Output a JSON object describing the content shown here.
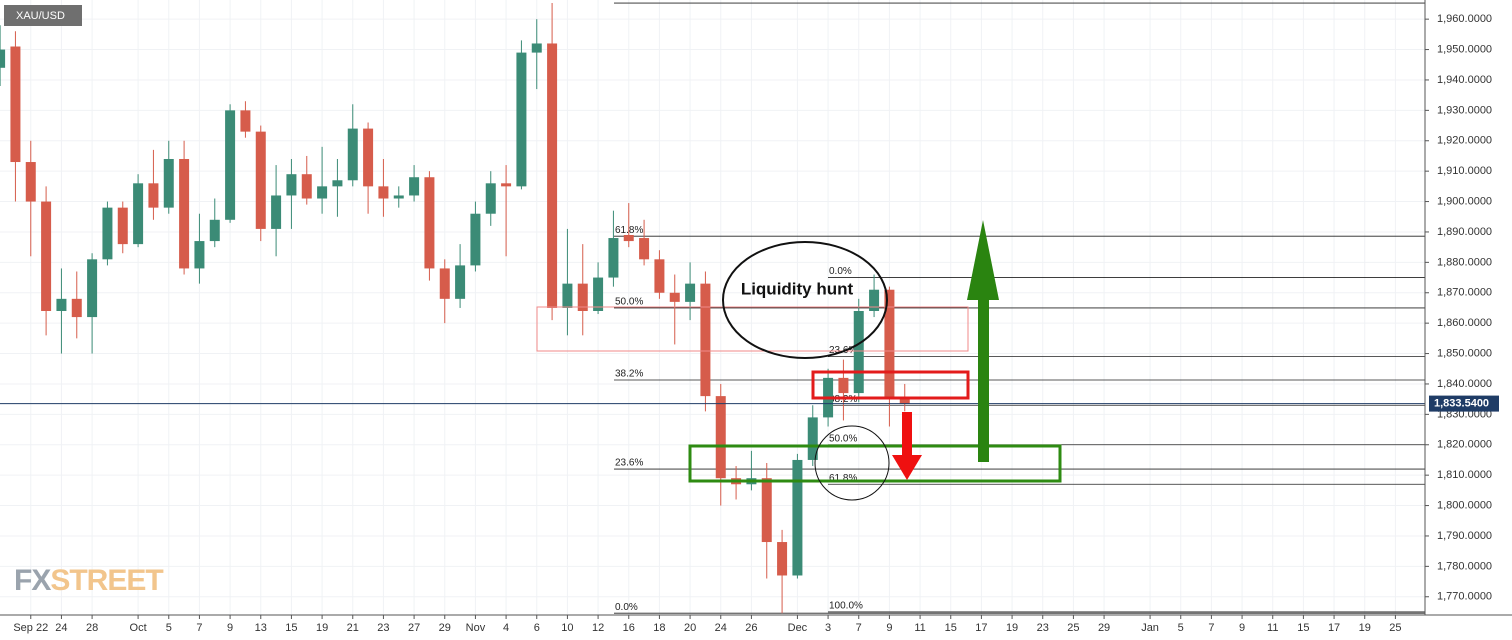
{
  "chart_data": {
    "type": "candlestick",
    "title": "XAU/USD",
    "watermark": [
      "FX",
      "STREET"
    ],
    "categories": [
      null,
      null,
      "Sep 22",
      null,
      "24",
      null,
      "28",
      null,
      null,
      "Oct",
      null,
      "5",
      null,
      "7",
      null,
      "9",
      null,
      "13",
      null,
      "15",
      null,
      "19",
      null,
      "21",
      null,
      "23",
      null,
      "27",
      null,
      "29",
      null,
      "Nov",
      null,
      "4",
      null,
      "6",
      null,
      "10",
      null,
      "12",
      null,
      "16",
      null,
      "18",
      null,
      "20",
      null,
      "24",
      null,
      "26",
      null,
      null,
      "Dec",
      null,
      "3",
      null,
      "7",
      null,
      "9",
      null,
      "11",
      null,
      "15",
      null,
      "17",
      null,
      "19",
      null,
      "23",
      null,
      "25",
      null,
      "29",
      null,
      null,
      "Jan",
      null,
      "5",
      null,
      "7",
      null,
      "9",
      null,
      "11",
      null,
      "15",
      null,
      "17",
      null,
      "19",
      null,
      "25",
      null
    ],
    "open": [
      1944,
      1951,
      1913,
      1900,
      1864,
      1868,
      1862,
      1881,
      1898,
      1886,
      1906,
      1898,
      1914,
      1878,
      1887,
      1894,
      1930,
      1923,
      1891,
      1902,
      1909,
      1901,
      1905,
      1907,
      1924,
      1905,
      1901,
      1902,
      1908,
      1878,
      1868,
      1879,
      1896,
      1906,
      1905,
      1949,
      1952,
      1865,
      1873,
      1864,
      1875,
      1889,
      1888,
      1881,
      1870,
      1867,
      1873,
      1836,
      1809,
      1807,
      1809,
      1788,
      1777,
      1815,
      1829,
      1842,
      1837,
      1864,
      1871,
      1835,
      null,
      null,
      null,
      null,
      null,
      null,
      null,
      null,
      null,
      null,
      null,
      null,
      null,
      null,
      null,
      null,
      null,
      null,
      null,
      null,
      null,
      null,
      null,
      null,
      null,
      null,
      null,
      null,
      null,
      null,
      null,
      null,
      null
    ],
    "high": [
      1958,
      1956,
      1920,
      1905,
      1878,
      1877,
      1883,
      1900,
      1900,
      1909,
      1917,
      1920,
      1920,
      1896,
      1901,
      1932,
      1933,
      1925,
      1912,
      1914,
      1915,
      1918,
      1914,
      1932,
      1926,
      1914,
      1905,
      1912,
      1910,
      1881,
      1886,
      1900,
      1910,
      1912,
      1953,
      1960,
      1965.3,
      1891,
      1886,
      1880,
      1897,
      1899.5,
      1894,
      1884,
      1876,
      1880,
      1877,
      1840,
      1813,
      1818,
      1814,
      1792,
      1817,
      1833,
      1845,
      1848,
      1868,
      1876,
      1872,
      1840,
      null,
      null,
      null,
      null,
      null,
      null,
      null,
      null,
      null,
      null,
      null,
      null,
      null,
      null,
      null,
      null,
      null,
      null,
      null,
      null,
      null,
      null,
      null,
      null,
      null,
      null,
      null,
      null,
      null,
      null,
      null,
      null,
      null
    ],
    "low": [
      1938,
      1900,
      1882,
      1856,
      1850,
      1855,
      1850,
      1879,
      1883,
      1885,
      1894,
      1896,
      1876,
      1873,
      1885,
      1893,
      1921,
      1887,
      1882,
      1891,
      1899,
      1896,
      1895,
      1905,
      1896,
      1895,
      1898,
      1900,
      1874,
      1860,
      1865,
      1877,
      1892,
      1882,
      1904,
      1937,
      1861,
      1856,
      1856,
      1863,
      1872,
      1885,
      1879,
      1868,
      1853,
      1861,
      1831,
      1800,
      1802,
      1805,
      1776,
      1764.6,
      1776,
      1813,
      1826,
      1828,
      1834,
      1862,
      1826,
      1831,
      null,
      null,
      null,
      null,
      null,
      null,
      null,
      null,
      null,
      null,
      null,
      null,
      null,
      null,
      null,
      null,
      null,
      null,
      null,
      null,
      null,
      null,
      null,
      null,
      null,
      null,
      null,
      null,
      null,
      null,
      null,
      null,
      null
    ],
    "close": [
      1950,
      1913,
      1900,
      1864,
      1868,
      1862,
      1881,
      1898,
      1886,
      1906,
      1898,
      1914,
      1878,
      1887,
      1894,
      1930,
      1923,
      1891,
      1902,
      1909,
      1901,
      1905,
      1907,
      1924,
      1905,
      1901,
      1902,
      1908,
      1878,
      1868,
      1879,
      1896,
      1906,
      1905,
      1949,
      1952,
      1865,
      1873,
      1864,
      1875,
      1888,
      1887,
      1881,
      1870,
      1867,
      1873,
      1836,
      1809,
      1807,
      1809,
      1788,
      1777,
      1815,
      1829,
      1842,
      1837,
      1864,
      1871,
      1835,
      1833.54,
      null,
      null,
      null,
      null,
      null,
      null,
      null,
      null,
      null,
      null,
      null,
      null,
      null,
      null,
      null,
      null,
      null,
      null,
      null,
      null,
      null,
      null,
      null,
      null,
      null,
      null,
      null,
      null,
      null,
      null,
      null,
      null,
      null
    ],
    "up_color": "#3b8b76",
    "down_color": "#d65c4b",
    "ylim": [
      1764,
      1966.3
    ],
    "yticks": [
      {
        "value": 1770,
        "label": "1,770.0000"
      },
      {
        "value": 1780,
        "label": "1,780.0000"
      },
      {
        "value": 1790,
        "label": "1,790.0000"
      },
      {
        "value": 1800,
        "label": "1,800.0000"
      },
      {
        "value": 1810,
        "label": "1,810.0000"
      },
      {
        "value": 1820,
        "label": "1,820.0000"
      },
      {
        "value": 1830,
        "label": "1,830.0000"
      },
      {
        "value": 1840,
        "label": "1,840.0000"
      },
      {
        "value": 1850,
        "label": "1,850.0000"
      },
      {
        "value": 1860,
        "label": "1,860.0000"
      },
      {
        "value": 1870,
        "label": "1,870.0000"
      },
      {
        "value": 1880,
        "label": "1,880.0000"
      },
      {
        "value": 1890,
        "label": "1,890.0000"
      },
      {
        "value": 1900,
        "label": "1,900.0000"
      },
      {
        "value": 1910,
        "label": "1,910.0000"
      },
      {
        "value": 1920,
        "label": "1,920.0000"
      },
      {
        "value": 1930,
        "label": "1,930.0000"
      },
      {
        "value": 1940,
        "label": "1,940.0000"
      },
      {
        "value": 1950,
        "label": "1,950.0000"
      },
      {
        "value": 1960,
        "label": "1,960.0000"
      }
    ],
    "grid": true,
    "last_price": {
      "value": 1833.54,
      "label": "1,833.5400",
      "color": "#1f3c66"
    },
    "fib_retracements": [
      {
        "levels": [
          {
            "value": 1764.6,
            "label": "0.0%"
          },
          {
            "value": 1812,
            "label": "23.6%"
          },
          {
            "value": 1841.3,
            "label": "38.2%"
          },
          {
            "value": 1865,
            "label": "50.0%"
          },
          {
            "value": 1888.6,
            "label": "61.8%"
          },
          {
            "value": 1965.3
          }
        ]
      },
      {
        "levels": [
          {
            "value": 1875,
            "label": "0.0%"
          },
          {
            "value": 1849,
            "label": "23.6%"
          },
          {
            "value": 1833,
            "label": "38.2%"
          },
          {
            "value": 1820,
            "label": "50.0%"
          },
          {
            "value": 1807,
            "label": "61.8%"
          },
          {
            "value": 1765,
            "label": "100.0%"
          }
        ]
      }
    ],
    "annotation": "Liquidity hunt"
  }
}
